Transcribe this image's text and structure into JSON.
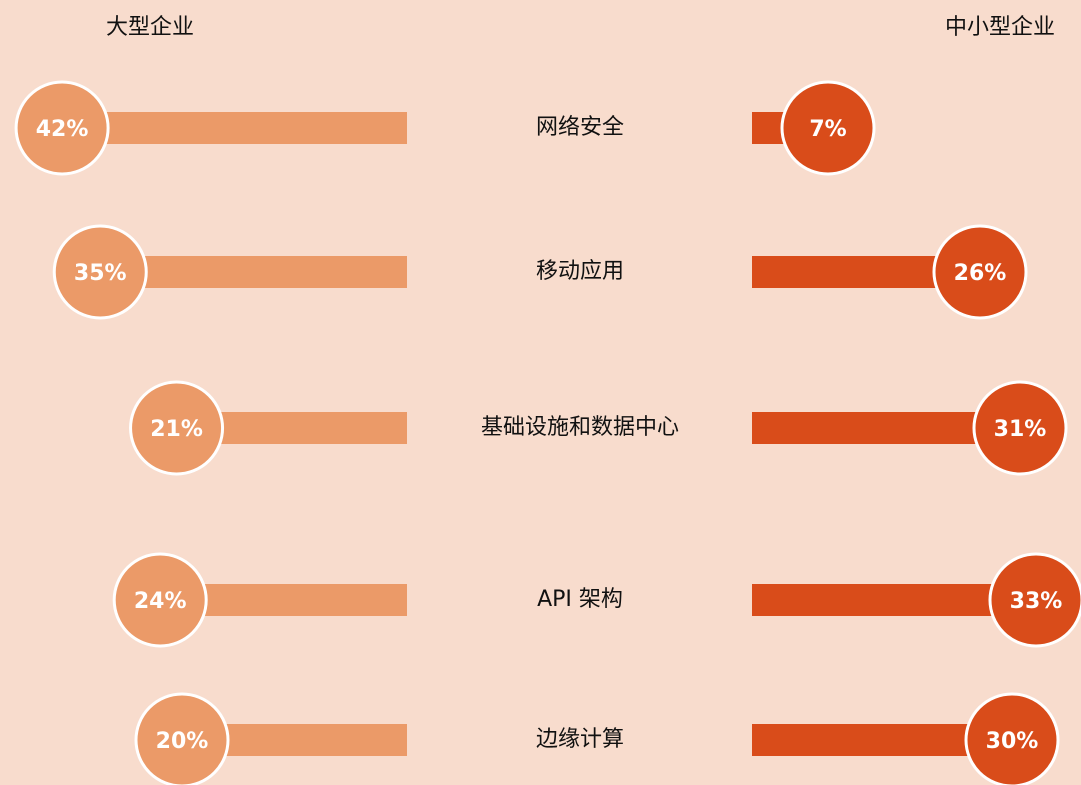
{
  "chart_data": {
    "type": "butterfly",
    "categories": [
      "网络安全",
      "移动应用",
      "基础设施和数据中心",
      "API 架构",
      "边缘计算"
    ],
    "series": [
      {
        "name": "大型企业",
        "color": "#eb9a68",
        "values": [
          42,
          35,
          21,
          24,
          20
        ],
        "value_labels": [
          "42%",
          "35%",
          "21%",
          "24%",
          "20%"
        ]
      },
      {
        "name": "中小型企业",
        "color": "#d94c1a",
        "values": [
          7,
          26,
          31,
          33,
          30
        ],
        "value_labels": [
          "7%",
          "26%",
          "31%",
          "33%",
          "30%"
        ]
      }
    ]
  }
}
